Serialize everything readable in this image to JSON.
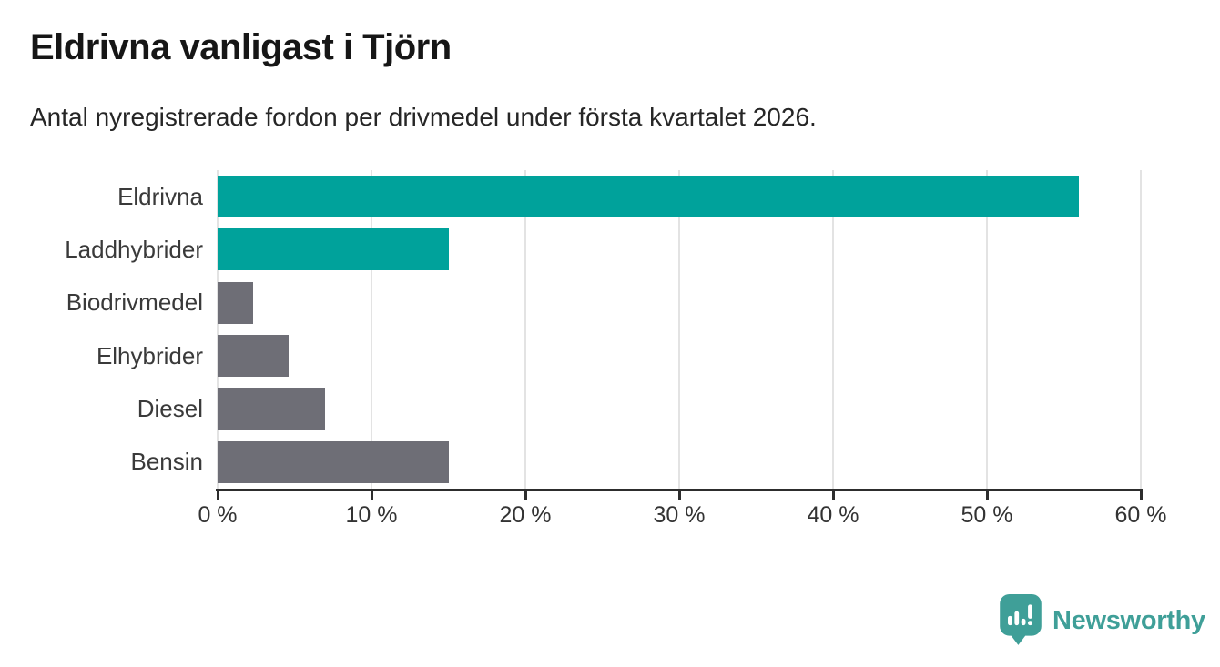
{
  "header": {
    "title": "Eldrivna vanligast i Tjörn",
    "subtitle": "Antal nyregistrerade fordon per drivmedel under första kvartalet 2026."
  },
  "chart_data": {
    "type": "bar",
    "orientation": "horizontal",
    "title": "Eldrivna vanligast i Tjörn",
    "subtitle": "Antal nyregistrerade fordon per drivmedel under första kvartalet 2026.",
    "categories": [
      "Eldrivna",
      "Laddhybrider",
      "Biodrivmedel",
      "Elhybrider",
      "Diesel",
      "Bensin"
    ],
    "values": [
      56,
      15,
      2.3,
      4.6,
      7,
      15
    ],
    "unit": "%",
    "bar_colors": [
      "#00a29b",
      "#00a29b",
      "#6e6e76",
      "#6e6e76",
      "#6e6e76",
      "#6e6e76"
    ],
    "highlighted_categories": [
      "Eldrivna",
      "Laddhybrider"
    ],
    "xlim": [
      0,
      60
    ],
    "x_ticks": [
      0,
      10,
      20,
      30,
      40,
      50,
      60
    ],
    "x_tick_labels": [
      "0 %",
      "10 %",
      "20 %",
      "30 %",
      "40 %",
      "50 %",
      "60 %"
    ],
    "xlabel": "",
    "ylabel": "",
    "grid": "vertical-only",
    "legend": "none",
    "background": "#ffffff"
  },
  "colors": {
    "highlight": "#00a29b",
    "muted": "#6e6e76",
    "gridline": "#e3e3e3",
    "axis_line": "#2d2d2d",
    "tick_text": "#333333",
    "category_text": "#3a3a3a",
    "title_text": "#161616",
    "brand": "#3f9f98"
  },
  "footer": {
    "brand": "Newsworthy",
    "brand_color": "#3f9f98",
    "logo_icon": "newsworthy-speech-bubble-barchart-icon"
  }
}
